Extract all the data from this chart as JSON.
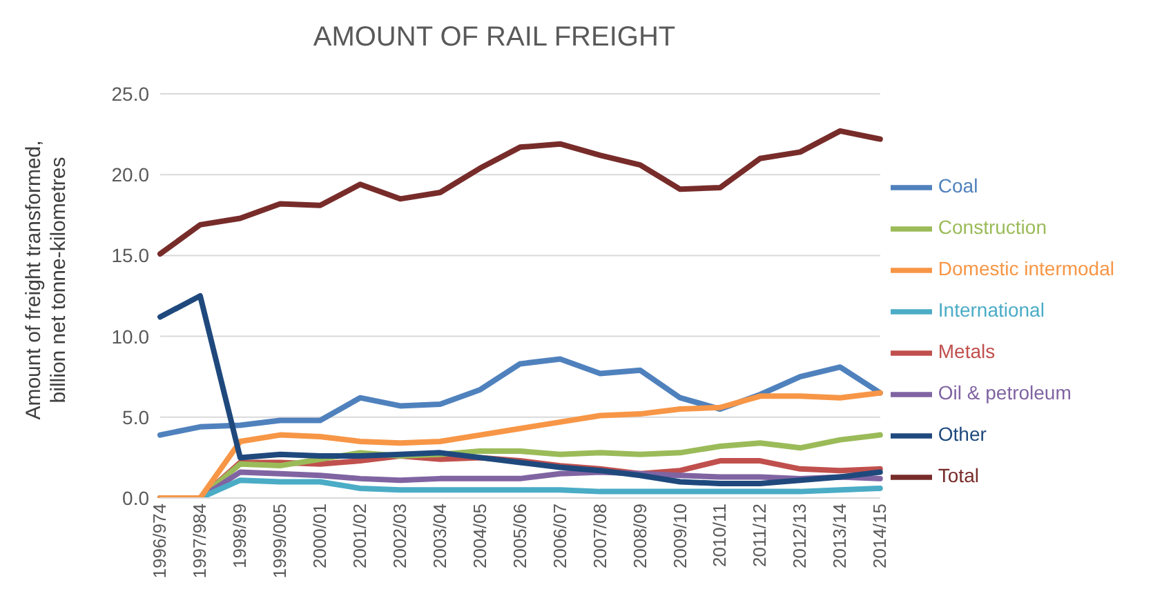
{
  "chart_data": {
    "type": "line",
    "title": "AMOUNT OF RAIL FREIGHT",
    "ylabel": "Amount of freight transformed, billion net tonne-kilometres",
    "categories": [
      "1996/974",
      "1997/984",
      "1998/99",
      "1999/005",
      "2000/01",
      "2001/02",
      "2002/03",
      "2003/04",
      "2004/05",
      "2005/06",
      "2006/07",
      "2007/08",
      "2008/09",
      "2009/10",
      "2010/11",
      "2011/12",
      "2012/13",
      "2013/14",
      "2014/15"
    ],
    "ylim": [
      0,
      25
    ],
    "yticks": [
      {
        "value": 0,
        "label": "0.0"
      },
      {
        "value": 5,
        "label": "5.0"
      },
      {
        "value": 10,
        "label": "10.0"
      },
      {
        "value": 15,
        "label": "15.0"
      },
      {
        "value": 20,
        "label": "20.0"
      },
      {
        "value": 25,
        "label": "25.0"
      }
    ],
    "grid": "y",
    "legend": "right",
    "marker": "none",
    "line_style": "solid",
    "series": [
      {
        "name": "Coal",
        "color": "#4f81bd",
        "values": [
          3.9,
          4.4,
          4.5,
          4.8,
          4.8,
          6.2,
          5.7,
          5.8,
          6.7,
          8.3,
          8.6,
          7.7,
          7.9,
          6.2,
          5.5,
          6.4,
          7.5,
          8.1,
          6.5
        ]
      },
      {
        "name": "Metals",
        "color": "#c0504d",
        "values": [
          0,
          0,
          2.2,
          2.2,
          2.1,
          2.3,
          2.6,
          2.4,
          2.5,
          2.3,
          2.0,
          1.8,
          1.5,
          1.7,
          2.3,
          2.3,
          1.8,
          1.7,
          1.8
        ]
      },
      {
        "name": "Construction",
        "color": "#9bbb59",
        "values": [
          0,
          0,
          2.1,
          2.0,
          2.4,
          2.8,
          2.6,
          2.7,
          2.9,
          2.9,
          2.7,
          2.8,
          2.7,
          2.8,
          3.2,
          3.4,
          3.1,
          3.6,
          3.9
        ]
      },
      {
        "name": "Oil & petroleum",
        "color": "#8064a2",
        "values": [
          0,
          0,
          1.6,
          1.5,
          1.4,
          1.2,
          1.1,
          1.2,
          1.2,
          1.2,
          1.5,
          1.6,
          1.5,
          1.4,
          1.3,
          1.3,
          1.2,
          1.3,
          1.2
        ]
      },
      {
        "name": "International",
        "color": "#4bacc6",
        "values": [
          0,
          0,
          1.1,
          1.0,
          1.0,
          0.6,
          0.5,
          0.5,
          0.5,
          0.5,
          0.5,
          0.4,
          0.4,
          0.4,
          0.4,
          0.4,
          0.4,
          0.5,
          0.6
        ]
      },
      {
        "name": "Domestic intermodal",
        "color": "#f79646",
        "values": [
          0,
          0,
          3.5,
          3.9,
          3.8,
          3.5,
          3.4,
          3.5,
          3.9,
          4.3,
          4.7,
          5.1,
          5.2,
          5.5,
          5.6,
          6.3,
          6.3,
          6.2,
          6.5
        ]
      },
      {
        "name": "Other",
        "color": "#1f497d",
        "values": [
          11.2,
          12.5,
          2.5,
          2.7,
          2.6,
          2.6,
          2.7,
          2.8,
          2.5,
          2.2,
          1.9,
          1.7,
          1.4,
          1.0,
          0.9,
          0.9,
          1.1,
          1.3,
          1.6
        ]
      },
      {
        "name": "Total",
        "color": "#772c2a",
        "values": [
          15.1,
          16.9,
          17.3,
          18.2,
          18.1,
          19.4,
          18.5,
          18.9,
          20.4,
          21.7,
          21.9,
          21.2,
          20.6,
          19.1,
          19.2,
          21.0,
          21.4,
          22.7,
          22.2
        ]
      }
    ]
  }
}
